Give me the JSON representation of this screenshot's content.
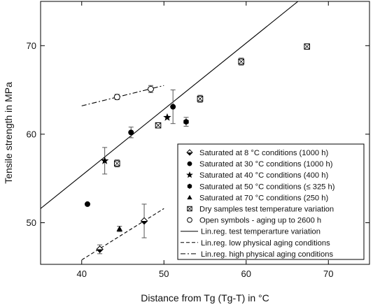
{
  "chart_data": {
    "type": "scatter",
    "xlabel": "Distance from Tg (Tg-T) in °C",
    "ylabel": "Tensile strength in MPa",
    "xlim": [
      35,
      75
    ],
    "ylim": [
      45.3,
      75
    ],
    "xticks": [
      40,
      50,
      60,
      70
    ],
    "yticks": [
      50,
      60,
      70
    ],
    "grid": false,
    "legend_position": "lower-right",
    "series": [
      {
        "name": "Saturated at 8 °C conditions (1000 h)",
        "marker": "diamond-half",
        "filled": true,
        "points": [
          {
            "x": 42.2,
            "y": 47.0,
            "err": 0.5
          },
          {
            "x": 47.6,
            "y": 50.2,
            "err": 1.9
          }
        ]
      },
      {
        "name": "Saturated at 30 °C conditions (1000 h)",
        "marker": "circle",
        "filled": true,
        "points": [
          {
            "x": 40.7,
            "y": 52.1,
            "err": 0
          },
          {
            "x": 46.0,
            "y": 60.2,
            "err": 0.6
          },
          {
            "x": 51.1,
            "y": 63.1,
            "err": 1.9
          }
        ]
      },
      {
        "name": "Saturated at 40 °C conditions (400 h)",
        "marker": "star",
        "filled": true,
        "points": [
          {
            "x": 42.8,
            "y": 57.0,
            "err": 1.5
          },
          {
            "x": 50.4,
            "y": 61.9,
            "err": 0
          }
        ]
      },
      {
        "name": "Saturated at 50 °C conditions (≤ 325 h)",
        "marker": "hexagon",
        "filled": true,
        "points": [
          {
            "x": 52.7,
            "y": 61.4,
            "err": 0.5
          }
        ]
      },
      {
        "name": "Saturated at 70 °C conditions (250 h)",
        "marker": "triangle",
        "filled": true,
        "points": [
          {
            "x": 44.6,
            "y": 49.3,
            "err": 0.3
          }
        ]
      },
      {
        "name": "Dry samples test temperature variation",
        "marker": "square-x",
        "filled": false,
        "points": [
          {
            "x": 44.3,
            "y": 56.7,
            "err": 0.4
          },
          {
            "x": 49.3,
            "y": 61.0,
            "err": 0
          },
          {
            "x": 54.4,
            "y": 64.0,
            "err": 0.4
          },
          {
            "x": 59.4,
            "y": 68.2,
            "err": 0.4
          },
          {
            "x": 67.4,
            "y": 69.9,
            "err": 0.3
          }
        ]
      },
      {
        "name": "Open symbols - aging up to 2600 h",
        "marker": "circle",
        "filled": false,
        "points": [
          {
            "x": 44.3,
            "y": 64.2,
            "err": 0.3
          },
          {
            "x": 48.4,
            "y": 65.1,
            "err": 0.4
          }
        ]
      }
    ],
    "lines": [
      {
        "name": "Lin.reg. test temperarture variation",
        "style": "solid",
        "x": [
          35,
          66.3
        ],
        "y": [
          51.6,
          75
        ]
      },
      {
        "name": "Lin.reg. low physical aging conditions",
        "style": "dashed",
        "x": [
          40.0,
          50.0
        ],
        "y": [
          45.8,
          51.6
        ]
      },
      {
        "name": "Lin.reg. high physical aging conditions",
        "style": "dashdot",
        "x": [
          40.0,
          50.0
        ],
        "y": [
          63.2,
          65.5
        ]
      }
    ]
  }
}
